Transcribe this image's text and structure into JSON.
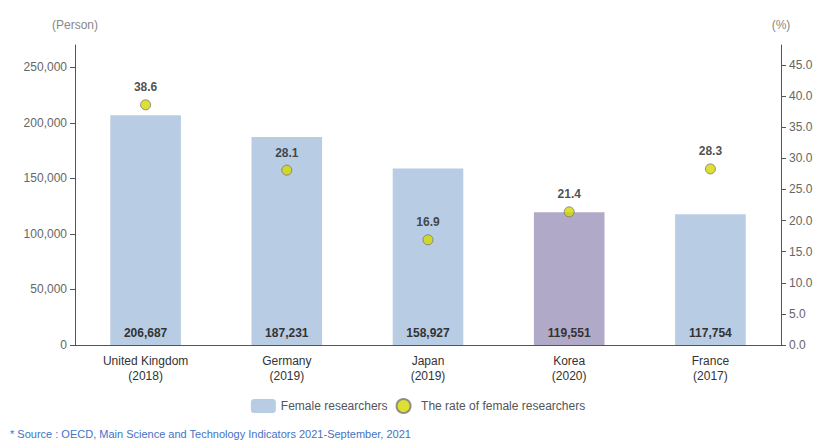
{
  "chart_data": {
    "type": "bar",
    "categories": [
      "United Kingdom\n(2018)",
      "Germany\n(2019)",
      "Japan\n(2019)",
      "Korea\n(2020)",
      "France\n(2017)"
    ],
    "series": [
      {
        "name": "Female researchers",
        "type": "bar",
        "color": "#b8cce4",
        "colors": [
          "#b8cce4",
          "#b8cce4",
          "#b8cce4",
          "#b0aac8",
          "#b8cce4"
        ],
        "values": [
          206687,
          187231,
          158927,
          119551,
          117754
        ],
        "value_labels": [
          "206,687",
          "187,231",
          "158,927",
          "119,551",
          "117,754"
        ]
      },
      {
        "name": "The rate of female researchers",
        "type": "scatter",
        "axis": "y2",
        "color": "#d4d800",
        "marker": "circle",
        "values": [
          38.6,
          28.1,
          16.9,
          21.4,
          28.3
        ]
      }
    ],
    "ylabel": "(Person)",
    "y2label": "(%)",
    "ylim": [
      0,
      270000
    ],
    "yticks": [
      0,
      {
        "value": 50000,
        "label": "50,000"
      },
      {
        "value": 100000,
        "label": "100,000"
      },
      {
        "value": 150000,
        "label": "150,000"
      },
      {
        "value": 200000,
        "label": "200,000"
      },
      {
        "value": 250000,
        "label": "250,000"
      }
    ],
    "y2lim": [
      0,
      48.214
    ],
    "y2ticks": [
      {
        "value": 0.0,
        "label": "0.0"
      },
      {
        "value": 5.0,
        "label": "5.0"
      },
      {
        "value": 10.0,
        "label": "10.0"
      },
      {
        "value": 15.0,
        "label": "15.0"
      },
      {
        "value": 20.0,
        "label": "20.0"
      },
      {
        "value": 25.0,
        "label": "25.0"
      },
      {
        "value": 30.0,
        "label": "30.0"
      },
      {
        "value": 35.0,
        "label": "35.0"
      },
      {
        "value": 40.0,
        "label": "40.0"
      },
      {
        "value": 45.0,
        "label": "45.0"
      }
    ],
    "data_labels": true,
    "grid": false,
    "legend": "bottom",
    "annotations": [
      "* Source : OECD, Main Science and Technology Indicators 2021-September, 2021"
    ]
  }
}
